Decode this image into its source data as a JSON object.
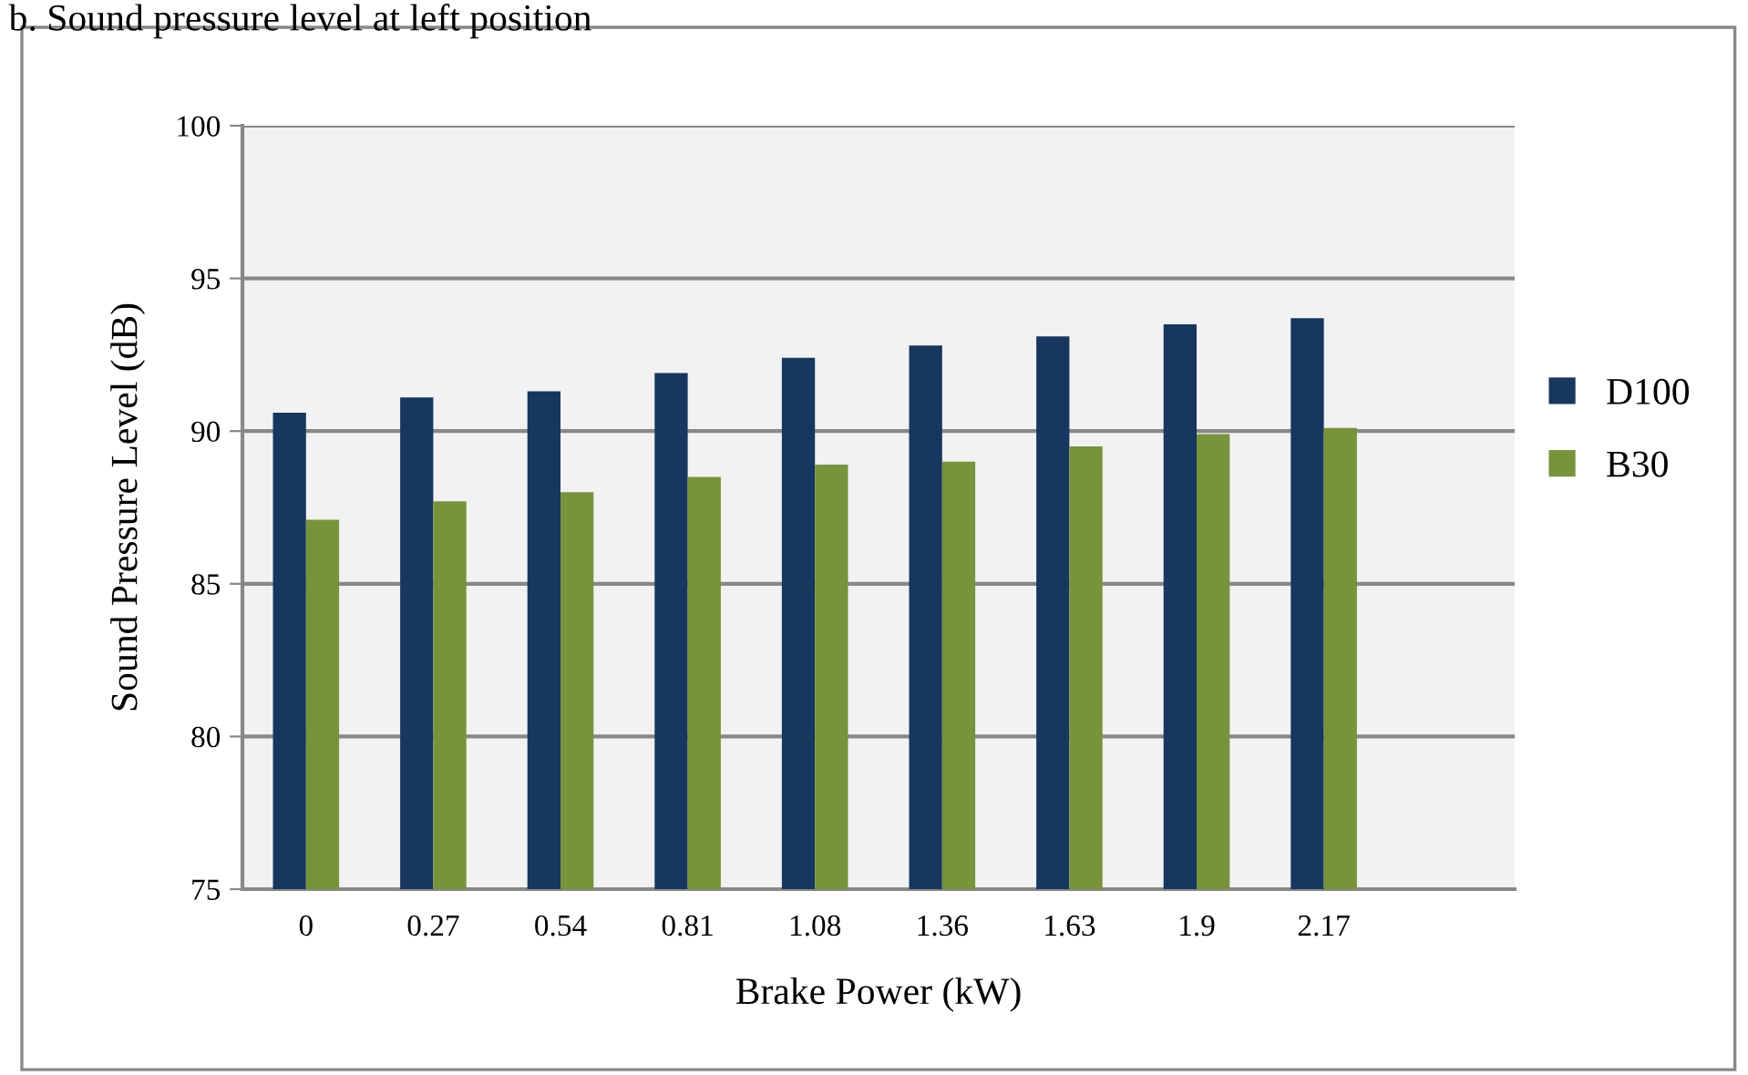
{
  "chart_data": {
    "type": "bar",
    "title": "b. Sound pressure level at left position",
    "xlabel": "Brake Power (kW)",
    "ylabel": "Sound Pressure Level (dB)",
    "categories": [
      "0",
      "0.27",
      "0.54",
      "0.81",
      "1.08",
      "1.36",
      "1.63",
      "1.9",
      "2.17",
      null
    ],
    "series": [
      {
        "name": "D100",
        "color": "#17375e",
        "values": [
          90.6,
          91.1,
          91.3,
          91.9,
          92.4,
          92.8,
          93.1,
          93.5,
          93.7,
          null
        ]
      },
      {
        "name": "B30",
        "color": "#77933c",
        "values": [
          87.1,
          87.7,
          88.0,
          88.5,
          88.9,
          89.0,
          89.5,
          89.9,
          90.1,
          null
        ]
      }
    ],
    "ylim": [
      75,
      100
    ],
    "yticks": [
      75,
      80,
      85,
      90,
      95,
      100
    ],
    "grid": "y",
    "legend": "right"
  }
}
